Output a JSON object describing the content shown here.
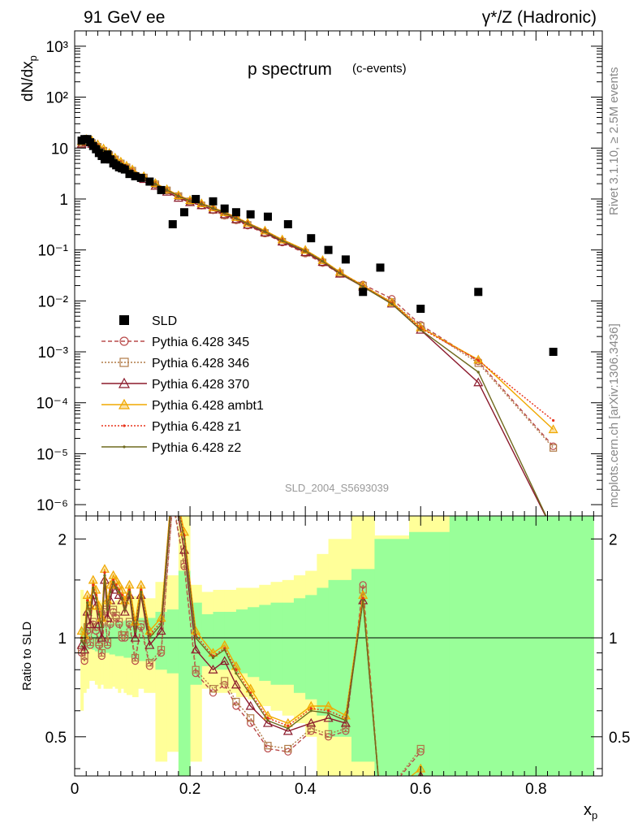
{
  "header": {
    "left": "91 GeV ee",
    "right": "γ*/Z (Hadronic)",
    "side_top": "Rivet 3.1.10, ≥ 2.5M events",
    "side_bottom": "mcplots.cern.ch [arXiv:1306.3436]"
  },
  "chart_data": [
    {
      "type": "scatter",
      "title": "p spectrum",
      "subtitle": "(c-events)",
      "ylabel": "dN/dx_p",
      "ylog": true,
      "ylim": [
        6e-07,
        2000
      ],
      "xlim": [
        0,
        0.915
      ],
      "watermark": "SLD_2004_S5693039",
      "yticks": [
        {
          "v": 1e-06,
          "l": "10⁻⁶"
        },
        {
          "v": 1e-05,
          "l": "10⁻⁵"
        },
        {
          "v": 0.0001,
          "l": "10⁻⁴"
        },
        {
          "v": 0.001,
          "l": "10⁻³"
        },
        {
          "v": 0.01,
          "l": "10⁻²"
        },
        {
          "v": 0.1,
          "l": "10⁻¹"
        },
        {
          "v": 1,
          "l": "1"
        },
        {
          "v": 10,
          "l": "10"
        },
        {
          "v": 100,
          "l": "10²"
        },
        {
          "v": 1000,
          "l": "10³"
        }
      ],
      "legend": [
        "SLD",
        "Pythia 6.428 345",
        "Pythia 6.428 346",
        "Pythia 6.428 370",
        "Pythia 6.428 ambt1",
        "Pythia 6.428 z1",
        "Pythia 6.428 z2"
      ],
      "data_series": {
        "name": "SLD",
        "x": [
          0.012,
          0.017,
          0.022,
          0.027,
          0.032,
          0.037,
          0.042,
          0.047,
          0.052,
          0.057,
          0.062,
          0.067,
          0.072,
          0.077,
          0.082,
          0.087,
          0.095,
          0.105,
          0.115,
          0.13,
          0.15,
          0.17,
          0.19,
          0.21,
          0.24,
          0.26,
          0.28,
          0.305,
          0.335,
          0.37,
          0.41,
          0.44,
          0.47,
          0.5,
          0.53,
          0.6,
          0.7,
          0.83
        ],
        "y": [
          14,
          15,
          15,
          13,
          11,
          9.5,
          8,
          7,
          6,
          7.5,
          6,
          5,
          4.6,
          4.2,
          4.0,
          3.8,
          3.1,
          2.8,
          2.6,
          2.2,
          1.5,
          0.32,
          0.55,
          1.0,
          0.9,
          0.65,
          0.55,
          0.5,
          0.45,
          0.32,
          0.17,
          0.1,
          0.065,
          0.015,
          0.045,
          0.007,
          0.015,
          0.001
        ]
      },
      "mc_x": [
        0.012,
        0.02,
        0.03,
        0.04,
        0.05,
        0.06,
        0.07,
        0.08,
        0.09,
        0.1,
        0.12,
        0.14,
        0.16,
        0.18,
        0.2,
        0.22,
        0.24,
        0.26,
        0.28,
        0.3,
        0.33,
        0.36,
        0.4,
        0.43,
        0.46,
        0.5,
        0.55,
        0.6,
        0.7,
        0.83
      ],
      "series": [
        {
          "name": "Pythia 6.428 345",
          "y": [
            12.5,
            13.5,
            12.5,
            10.5,
            8.8,
            7.2,
            5.9,
            4.9,
            4.1,
            3.5,
            2.6,
            1.9,
            1.45,
            1.12,
            0.88,
            0.74,
            0.6,
            0.47,
            0.38,
            0.3,
            0.21,
            0.14,
            0.085,
            0.055,
            0.034,
            0.021,
            0.011,
            0.0034,
            0.00065,
            1.4e-05
          ]
        },
        {
          "name": "Pythia 6.428 346",
          "y": [
            12.6,
            13.6,
            12.6,
            10.6,
            8.9,
            7.3,
            6.0,
            5.0,
            4.2,
            3.6,
            2.65,
            1.95,
            1.48,
            1.14,
            0.9,
            0.75,
            0.61,
            0.48,
            0.39,
            0.31,
            0.215,
            0.145,
            0.088,
            0.057,
            0.035,
            0.02,
            0.0095,
            0.0032,
            0.0006,
            1.3e-05
          ]
        },
        {
          "name": "Pythia 6.428 370",
          "y": [
            12.0,
            13.0,
            12.0,
            10.0,
            8.4,
            6.9,
            5.6,
            4.7,
            3.9,
            3.3,
            2.45,
            1.8,
            1.38,
            1.05,
            0.86,
            0.75,
            0.62,
            0.5,
            0.4,
            0.31,
            0.22,
            0.145,
            0.09,
            0.058,
            0.034,
            0.019,
            0.0088,
            0.0027,
            0.00025,
            3e-07
          ]
        },
        {
          "name": "Pythia 6.428 ambt1",
          "y": [
            13.5,
            15.0,
            14.0,
            11.8,
            9.8,
            8.0,
            6.5,
            5.4,
            4.5,
            3.8,
            2.8,
            2.05,
            1.55,
            1.18,
            0.95,
            0.82,
            0.68,
            0.55,
            0.44,
            0.34,
            0.24,
            0.16,
            0.1,
            0.063,
            0.037,
            0.02,
            0.0093,
            0.003,
            0.0007,
            3e-05
          ]
        },
        {
          "name": "Pythia 6.428 z1",
          "y": [
            13.0,
            14.5,
            13.5,
            11.4,
            9.5,
            7.8,
            6.3,
            5.25,
            4.4,
            3.7,
            2.75,
            2.0,
            1.52,
            1.16,
            0.94,
            0.81,
            0.67,
            0.54,
            0.43,
            0.335,
            0.235,
            0.155,
            0.097,
            0.061,
            0.036,
            0.0195,
            0.009,
            0.0029,
            0.00068,
            4.5e-05
          ]
        },
        {
          "name": "Pythia 6.428 z2",
          "y": [
            12.8,
            14.2,
            13.2,
            11.1,
            9.3,
            7.6,
            6.2,
            5.1,
            4.3,
            3.6,
            2.7,
            1.97,
            1.5,
            1.14,
            0.92,
            0.8,
            0.66,
            0.53,
            0.42,
            0.33,
            0.23,
            0.152,
            0.095,
            0.06,
            0.035,
            0.019,
            0.0087,
            0.0027,
            0.0004,
            3e-07
          ]
        }
      ]
    },
    {
      "type": "line",
      "ylabel": "Ratio to SLD",
      "xlabel": "x_p",
      "ylim": [
        0.38,
        2.35
      ],
      "xlim": [
        0,
        0.915
      ],
      "xticks": [
        0,
        0.2,
        0.4,
        0.6,
        0.8
      ],
      "xtick_labels": [
        "0",
        "0.2",
        "0.4",
        "0.6",
        "0.8"
      ],
      "yticks": [
        0.5,
        1,
        2
      ],
      "ytick_labels": [
        "0.5",
        "1",
        "2"
      ],
      "band_edges": [
        0.01,
        0.015,
        0.02,
        0.025,
        0.03,
        0.035,
        0.04,
        0.045,
        0.05,
        0.055,
        0.06,
        0.065,
        0.07,
        0.075,
        0.08,
        0.085,
        0.09,
        0.1,
        0.11,
        0.12,
        0.14,
        0.16,
        0.18,
        0.2,
        0.22,
        0.24,
        0.26,
        0.28,
        0.3,
        0.32,
        0.34,
        0.36,
        0.38,
        0.4,
        0.42,
        0.44,
        0.48,
        0.52,
        0.58,
        0.65,
        0.77,
        0.9
      ],
      "band_inner": [
        [
          0.93,
          1.07
        ],
        [
          0.9,
          1.1
        ],
        [
          0.92,
          1.08
        ],
        [
          0.93,
          1.07
        ],
        [
          0.92,
          1.08
        ],
        [
          0.91,
          1.09
        ],
        [
          0.9,
          1.1
        ],
        [
          0.9,
          1.1
        ],
        [
          0.9,
          1.1
        ],
        [
          0.9,
          1.1
        ],
        [
          0.89,
          1.11
        ],
        [
          0.89,
          1.11
        ],
        [
          0.88,
          1.12
        ],
        [
          0.88,
          1.12
        ],
        [
          0.88,
          1.12
        ],
        [
          0.87,
          1.13
        ],
        [
          0.87,
          1.13
        ],
        [
          0.86,
          1.14
        ],
        [
          0.85,
          1.15
        ],
        [
          0.85,
          1.15
        ],
        [
          0.8,
          1.2
        ],
        [
          0.78,
          1.22
        ],
        [
          0.38,
          1.6
        ],
        [
          0.72,
          1.28
        ],
        [
          0.82,
          1.18
        ],
        [
          0.8,
          1.2
        ],
        [
          0.8,
          1.2
        ],
        [
          0.78,
          1.22
        ],
        [
          0.76,
          1.24
        ],
        [
          0.74,
          1.26
        ],
        [
          0.72,
          1.28
        ],
        [
          0.72,
          1.28
        ],
        [
          0.68,
          1.32
        ],
        [
          0.65,
          1.35
        ],
        [
          0.58,
          1.42
        ],
        [
          0.5,
          1.5
        ],
        [
          0.42,
          1.62
        ],
        [
          0.38,
          2.0
        ],
        [
          0.38,
          2.1
        ],
        [
          0.38,
          2.35
        ],
        [
          0.38,
          2.35
        ]
      ],
      "band_outer": [
        [
          0.6,
          1.4
        ],
        [
          0.68,
          1.32
        ],
        [
          0.7,
          1.3
        ],
        [
          0.74,
          1.26
        ],
        [
          0.74,
          1.26
        ],
        [
          0.72,
          1.28
        ],
        [
          0.7,
          1.3
        ],
        [
          0.72,
          1.28
        ],
        [
          0.7,
          1.3
        ],
        [
          0.7,
          1.3
        ],
        [
          0.7,
          1.3
        ],
        [
          0.71,
          1.29
        ],
        [
          0.7,
          1.3
        ],
        [
          0.68,
          1.32
        ],
        [
          0.7,
          1.3
        ],
        [
          0.68,
          1.32
        ],
        [
          0.67,
          1.33
        ],
        [
          0.66,
          1.34
        ],
        [
          0.7,
          1.3
        ],
        [
          0.68,
          1.32
        ],
        [
          0.42,
          1.48
        ],
        [
          0.45,
          1.55
        ],
        [
          0.38,
          2.35
        ],
        [
          0.42,
          1.45
        ],
        [
          0.7,
          1.38
        ],
        [
          0.68,
          1.4
        ],
        [
          0.68,
          1.4
        ],
        [
          0.66,
          1.42
        ],
        [
          0.65,
          1.42
        ],
        [
          0.62,
          1.45
        ],
        [
          0.6,
          1.48
        ],
        [
          0.58,
          1.5
        ],
        [
          0.55,
          1.55
        ],
        [
          0.5,
          1.6
        ],
        [
          0.38,
          1.8
        ],
        [
          0.38,
          2.0
        ],
        [
          0.38,
          2.35
        ],
        [
          0.38,
          2.05
        ],
        [
          0.38,
          2.35
        ],
        [
          0.38,
          1.95
        ],
        [
          0.38,
          2.35
        ]
      ],
      "mc_x": [
        0.012,
        0.017,
        0.022,
        0.027,
        0.032,
        0.037,
        0.042,
        0.047,
        0.052,
        0.057,
        0.062,
        0.067,
        0.072,
        0.077,
        0.082,
        0.087,
        0.095,
        0.105,
        0.115,
        0.13,
        0.15,
        0.17,
        0.19,
        0.21,
        0.24,
        0.26,
        0.28,
        0.305,
        0.335,
        0.37,
        0.41,
        0.44,
        0.47,
        0.5,
        0.53,
        0.6
      ],
      "series": [
        {
          "name": "Pythia 6.428 345",
          "y": [
            0.9,
            0.85,
            1.05,
            0.95,
            1.1,
            1.05,
            0.95,
            0.88,
            1.2,
            0.95,
            1.1,
            1.2,
            1.15,
            1.1,
            1.0,
            1.0,
            1.1,
            0.85,
            1.08,
            0.82,
            0.9,
            2.6,
            1.65,
            0.78,
            0.68,
            0.72,
            0.62,
            0.55,
            0.46,
            0.45,
            0.52,
            0.5,
            0.52,
            1.45,
            0.32,
            0.45
          ]
        },
        {
          "name": "Pythia 6.428 346",
          "y": [
            0.92,
            0.88,
            1.08,
            0.97,
            1.12,
            1.08,
            0.97,
            0.9,
            1.22,
            0.97,
            1.12,
            1.22,
            1.17,
            1.12,
            1.02,
            1.02,
            1.12,
            0.87,
            1.1,
            0.84,
            0.92,
            2.65,
            1.68,
            0.8,
            0.7,
            0.74,
            0.64,
            0.57,
            0.47,
            0.46,
            0.53,
            0.51,
            0.53,
            1.4,
            0.32,
            0.46
          ]
        },
        {
          "name": "Pythia 6.428 370",
          "y": [
            0.95,
            0.92,
            1.2,
            1.1,
            1.35,
            1.25,
            1.1,
            1.0,
            1.5,
            1.15,
            1.3,
            1.45,
            1.4,
            1.35,
            1.3,
            1.2,
            1.35,
            1.0,
            1.35,
            0.95,
            1.05,
            2.9,
            1.85,
            0.92,
            0.8,
            0.85,
            0.72,
            0.62,
            0.55,
            0.52,
            0.55,
            0.57,
            0.55,
            1.3,
            0.32,
            0.38
          ]
        },
        {
          "name": "Pythia 6.428 ambt1",
          "y": [
            1.05,
            1.02,
            1.35,
            1.25,
            1.5,
            1.4,
            1.25,
            1.15,
            1.62,
            1.3,
            1.45,
            1.55,
            1.5,
            1.45,
            1.4,
            1.3,
            1.45,
            1.12,
            1.45,
            1.05,
            1.15,
            3.1,
            2.1,
            1.05,
            0.9,
            0.95,
            0.82,
            0.7,
            0.58,
            0.55,
            0.62,
            0.62,
            0.58,
            1.35,
            0.32,
            0.4
          ]
        },
        {
          "name": "Pythia 6.428 z1",
          "y": [
            1.0,
            0.98,
            1.3,
            1.2,
            1.45,
            1.35,
            1.2,
            1.1,
            1.58,
            1.25,
            1.4,
            1.5,
            1.45,
            1.4,
            1.35,
            1.25,
            1.4,
            1.08,
            1.4,
            1.02,
            1.12,
            3.0,
            2.05,
            1.02,
            0.88,
            0.93,
            0.8,
            0.68,
            0.57,
            0.54,
            0.61,
            0.6,
            0.57,
            1.32,
            0.32,
            0.38
          ]
        },
        {
          "name": "Pythia 6.428 z2",
          "y": [
            0.98,
            0.96,
            1.28,
            1.18,
            1.42,
            1.32,
            1.18,
            1.08,
            1.55,
            1.22,
            1.38,
            1.48,
            1.42,
            1.38,
            1.32,
            1.22,
            1.38,
            1.05,
            1.38,
            1.0,
            1.1,
            2.95,
            2.0,
            1.0,
            0.87,
            0.92,
            0.78,
            0.67,
            0.56,
            0.53,
            0.6,
            0.59,
            0.56,
            1.3,
            0.32,
            0.38
          ]
        }
      ]
    }
  ],
  "colors": {
    "data": "#000000",
    "s345": "#b94a4a",
    "s346": "#b07a46",
    "s370": "#8b1a2c",
    "ambt1": "#f0a800",
    "z1": "#e8321a",
    "z2": "#6f6a1e",
    "band_inner": "#99ff99",
    "band_outer": "#ffff99"
  }
}
